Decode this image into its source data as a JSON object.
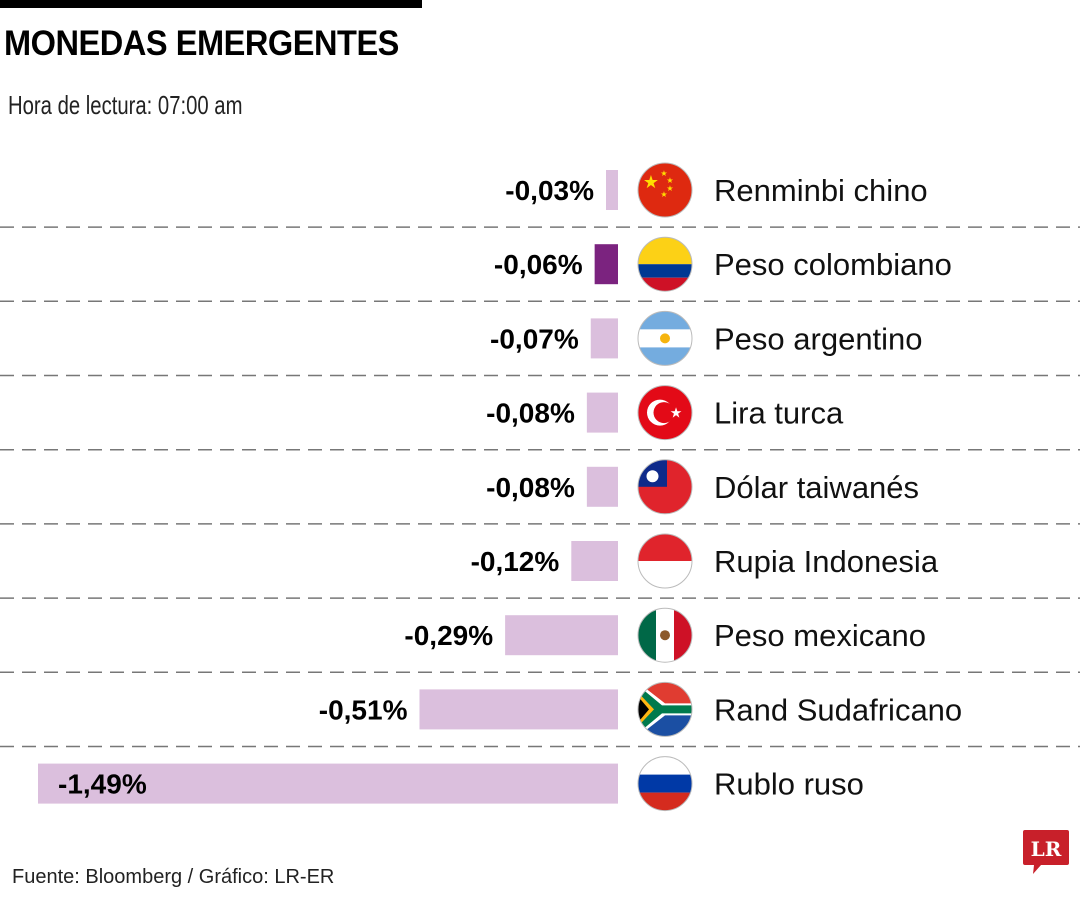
{
  "header": {
    "title": "MONEDAS EMERGENTES",
    "subtitle": "Hora de lectura: 07:00 am"
  },
  "footer": {
    "source": "Fuente: Bloomberg / Gráfico: LR-ER",
    "logo_text": "LR"
  },
  "colors": {
    "bar_default": "#dbbfdd",
    "bar_highlight": "#7b237f",
    "divider": "#777777",
    "logo_red": "#c8202a"
  },
  "chart_data": {
    "type": "bar",
    "orientation": "horizontal",
    "title": "MONEDAS EMERGENTES",
    "subtitle": "Hora de lectura: 07:00 am",
    "xlabel": "",
    "ylabel": "",
    "unit": "%",
    "xlim": [
      -1.49,
      0
    ],
    "grid": false,
    "highlight": "Peso colombiano",
    "categories": [
      "Renminbi chino",
      "Peso colombiano",
      "Peso argentino",
      "Lira turca",
      "Dólar taiwanés",
      "Rupia Indonesia",
      "Peso mexicano",
      "Rand Sudafricano",
      "Rublo ruso"
    ],
    "values": [
      -0.03,
      -0.06,
      -0.07,
      -0.08,
      -0.08,
      -0.12,
      -0.29,
      -0.51,
      -1.49
    ],
    "labels": [
      "-0,03%",
      "-0,06%",
      "-0,07%",
      "-0,08%",
      "-0,08%",
      "-0,12%",
      "-0,29%",
      "-0,51%",
      "-1,49%"
    ],
    "flags": [
      "china-flag",
      "colombia-flag",
      "argentina-flag",
      "turkey-flag",
      "taiwan-flag",
      "indonesia-flag",
      "mexico-flag",
      "south-africa-flag",
      "russia-flag"
    ]
  }
}
